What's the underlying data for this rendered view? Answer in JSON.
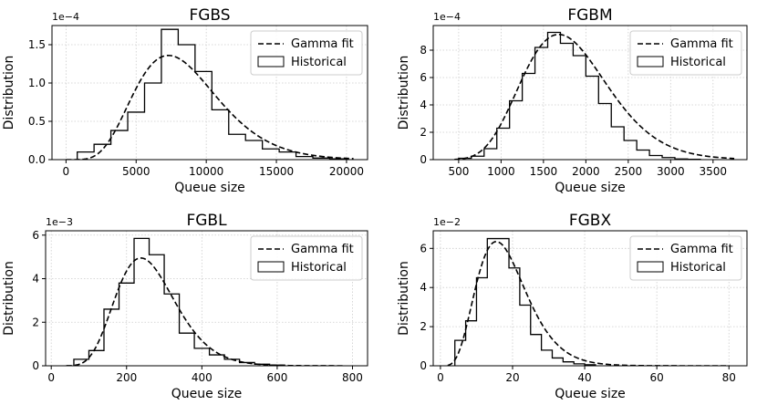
{
  "chart_data": [
    {
      "type": "histogram",
      "title": "FGBS",
      "xlabel": "Queue size",
      "ylabel": "Distribution",
      "y_multiplier": "1e−4",
      "xlim": [
        -1000,
        21500
      ],
      "ylim": [
        0,
        1.75
      ],
      "xticks": [
        0,
        5000,
        10000,
        15000,
        20000
      ],
      "yticks": [
        0.0,
        0.5,
        1.0,
        1.5
      ],
      "xtick_labels": [
        "0",
        "5000",
        "10000",
        "15000",
        "20000"
      ],
      "ytick_labels": [
        "0.0",
        "0.5",
        "1.0",
        "1.5"
      ],
      "grid": true,
      "legend": {
        "location": "upper right",
        "entries": [
          "Gamma fit",
          "Historical"
        ]
      },
      "series": [
        {
          "name": "Historical",
          "kind": "step-histogram",
          "bin_edges": [
            800,
            2000,
            3200,
            4400,
            5600,
            6800,
            8000,
            9200,
            10400,
            11600,
            12800,
            14000,
            15200,
            16400,
            17600,
            18800,
            20000
          ],
          "values": [
            0.1,
            0.2,
            0.38,
            0.62,
            1.0,
            1.7,
            1.5,
            1.15,
            0.65,
            0.33,
            0.25,
            0.14,
            0.1,
            0.04,
            0.02,
            0.01
          ]
        },
        {
          "name": "Gamma fit",
          "kind": "gamma-pdf",
          "mode": 7300,
          "peak": 1.36,
          "shape": 7,
          "x_range": [
            0,
            20500
          ]
        }
      ]
    },
    {
      "type": "histogram",
      "title": "FGBM",
      "xlabel": "Queue size",
      "ylabel": "Distribution",
      "y_multiplier": "1e−4",
      "xlim": [
        200,
        3900
      ],
      "ylim": [
        0,
        9.8
      ],
      "xticks": [
        500,
        1000,
        1500,
        2000,
        2500,
        3000,
        3500
      ],
      "yticks": [
        0,
        2,
        4,
        6,
        8
      ],
      "xtick_labels": [
        "500",
        "1000",
        "1500",
        "2000",
        "2500",
        "3000",
        "3500"
      ],
      "ytick_labels": [
        "0",
        "2",
        "4",
        "6",
        "8"
      ],
      "grid": true,
      "legend": {
        "location": "upper right",
        "entries": [
          "Gamma fit",
          "Historical"
        ]
      },
      "series": [
        {
          "name": "Historical",
          "kind": "step-histogram",
          "bin_edges": [
            500,
            650,
            800,
            950,
            1100,
            1250,
            1400,
            1550,
            1700,
            1850,
            2000,
            2150,
            2300,
            2450,
            2600,
            2750,
            2900,
            3050,
            3200,
            3350
          ],
          "values": [
            0.1,
            0.25,
            0.8,
            2.3,
            4.3,
            6.3,
            8.2,
            9.3,
            8.5,
            7.6,
            6.1,
            4.1,
            2.4,
            1.4,
            0.7,
            0.3,
            0.15,
            0.05,
            0.02
          ]
        },
        {
          "name": "Gamma fit",
          "kind": "gamma-pdf",
          "mode": 1680,
          "peak": 9.15,
          "shape": 12,
          "x_range": [
            450,
            3750
          ]
        }
      ]
    },
    {
      "type": "histogram",
      "title": "FGBL",
      "xlabel": "Queue size",
      "ylabel": "Distribution",
      "y_multiplier": "1e−3",
      "xlim": [
        -15,
        840
      ],
      "ylim": [
        0,
        6.2
      ],
      "xticks": [
        0,
        200,
        400,
        600,
        800
      ],
      "yticks": [
        0,
        2,
        4,
        6
      ],
      "xtick_labels": [
        "0",
        "200",
        "400",
        "600",
        "800"
      ],
      "ytick_labels": [
        "0",
        "2",
        "4",
        "6"
      ],
      "grid": true,
      "legend": {
        "location": "upper right",
        "entries": [
          "Gamma fit",
          "Historical"
        ]
      },
      "series": [
        {
          "name": "Historical",
          "kind": "step-histogram",
          "bin_edges": [
            60,
            100,
            140,
            180,
            220,
            260,
            300,
            340,
            380,
            420,
            460,
            500,
            540,
            580,
            620
          ],
          "values": [
            0.3,
            0.7,
            2.6,
            3.8,
            5.85,
            5.1,
            3.3,
            1.5,
            0.8,
            0.5,
            0.3,
            0.15,
            0.07,
            0.03
          ]
        },
        {
          "name": "Gamma fit",
          "kind": "gamma-pdf",
          "mode": 238,
          "peak": 4.95,
          "shape": 10,
          "x_range": [
            40,
            780
          ]
        }
      ]
    },
    {
      "type": "histogram",
      "title": "FGBX",
      "xlabel": "Queue size",
      "ylabel": "Distribution",
      "y_multiplier": "1e−2",
      "xlim": [
        -2,
        85
      ],
      "ylim": [
        0,
        6.9
      ],
      "xticks": [
        0,
        20,
        40,
        60,
        80
      ],
      "yticks": [
        0,
        2,
        4,
        6
      ],
      "xtick_labels": [
        "0",
        "20",
        "40",
        "60",
        "80"
      ],
      "ytick_labels": [
        "0",
        "2",
        "4",
        "6"
      ],
      "grid": true,
      "legend": {
        "location": "upper right",
        "entries": [
          "Gamma fit",
          "Historical"
        ]
      },
      "series": [
        {
          "name": "Historical",
          "kind": "step-histogram",
          "bin_edges": [
            4,
            7,
            10,
            13,
            16,
            19,
            22,
            25,
            28,
            31,
            34,
            37,
            40,
            43
          ],
          "values": [
            1.3,
            2.3,
            4.5,
            6.5,
            6.5,
            5.0,
            3.1,
            1.6,
            0.8,
            0.4,
            0.2,
            0.1,
            0.05
          ]
        },
        {
          "name": "Gamma fit",
          "kind": "gamma-pdf",
          "mode": 15.5,
          "peak": 6.35,
          "shape": 6,
          "x_range": [
            2,
            80
          ]
        }
      ]
    }
  ]
}
